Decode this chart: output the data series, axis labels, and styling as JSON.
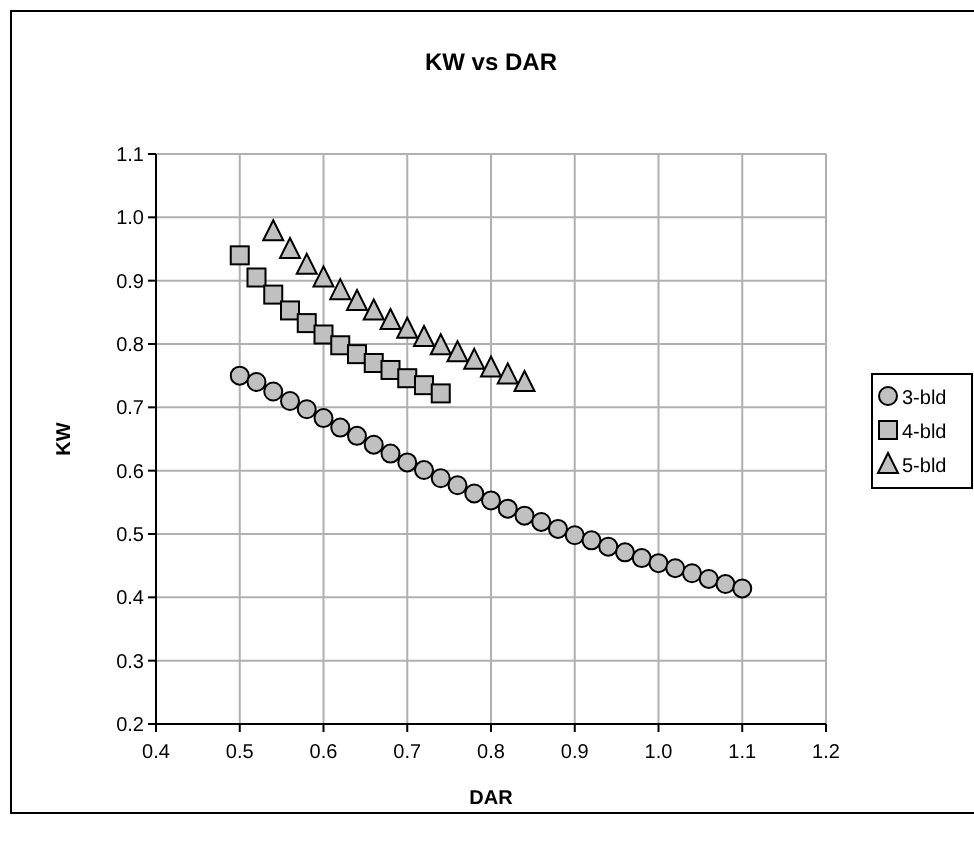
{
  "chart_data": {
    "type": "scatter",
    "title": "KW vs DAR",
    "xlabel": "DAR",
    "ylabel": "KW",
    "xlim": [
      0.4,
      1.2
    ],
    "xticks": [
      0.4,
      0.5,
      0.6,
      0.7,
      0.8,
      0.9,
      {
        "value": 1.0,
        "label": "1.0"
      },
      1.1,
      1.2
    ],
    "ylim": [
      0.2,
      1.1
    ],
    "yticks": [
      0.2,
      0.3,
      0.4,
      0.5,
      0.6,
      0.7,
      0.8,
      0.9,
      {
        "value": 1.0,
        "label": "1.0"
      },
      1.1
    ],
    "grid": true,
    "legend": "right",
    "series": [
      {
        "name": "3-bld",
        "color": "#c0c0c0",
        "marker": "circle",
        "x": [
          0.5,
          0.52,
          0.54,
          0.56,
          0.58,
          0.6,
          0.62,
          0.64,
          0.66,
          0.68,
          0.7,
          0.72,
          0.74,
          0.76,
          0.78,
          0.8,
          0.82,
          0.84,
          0.86,
          0.88,
          0.9,
          0.92,
          0.94,
          0.96,
          0.98,
          1.0,
          1.02,
          1.04,
          1.06,
          1.08,
          1.1
        ],
        "values": [
          0.75,
          0.74,
          0.725,
          0.71,
          0.697,
          0.683,
          0.668,
          0.655,
          0.641,
          0.627,
          0.613,
          0.601,
          0.588,
          0.577,
          0.564,
          0.553,
          0.54,
          0.529,
          0.519,
          0.508,
          0.498,
          0.49,
          0.48,
          0.471,
          0.462,
          0.454,
          0.446,
          0.438,
          0.429,
          0.421,
          0.414
        ]
      },
      {
        "name": "4-bld",
        "color": "#c0c0c0",
        "marker": "square",
        "x": [
          0.5,
          0.52,
          0.54,
          0.56,
          0.58,
          0.6,
          0.62,
          0.64,
          0.66,
          0.68,
          0.7,
          0.72,
          0.74
        ],
        "values": [
          0.94,
          0.905,
          0.878,
          0.853,
          0.833,
          0.815,
          0.798,
          0.784,
          0.77,
          0.759,
          0.746,
          0.735,
          0.722
        ]
      },
      {
        "name": "5-bld",
        "color": "#c0c0c0",
        "marker": "triangle",
        "x": [
          0.54,
          0.56,
          0.58,
          0.6,
          0.62,
          0.64,
          0.66,
          0.68,
          0.7,
          0.72,
          0.74,
          0.76,
          0.78,
          0.8,
          0.82,
          0.84
        ],
        "values": [
          0.978,
          0.95,
          0.925,
          0.905,
          0.885,
          0.868,
          0.853,
          0.838,
          0.824,
          0.811,
          0.798,
          0.787,
          0.775,
          0.763,
          0.752,
          0.74
        ]
      }
    ]
  }
}
